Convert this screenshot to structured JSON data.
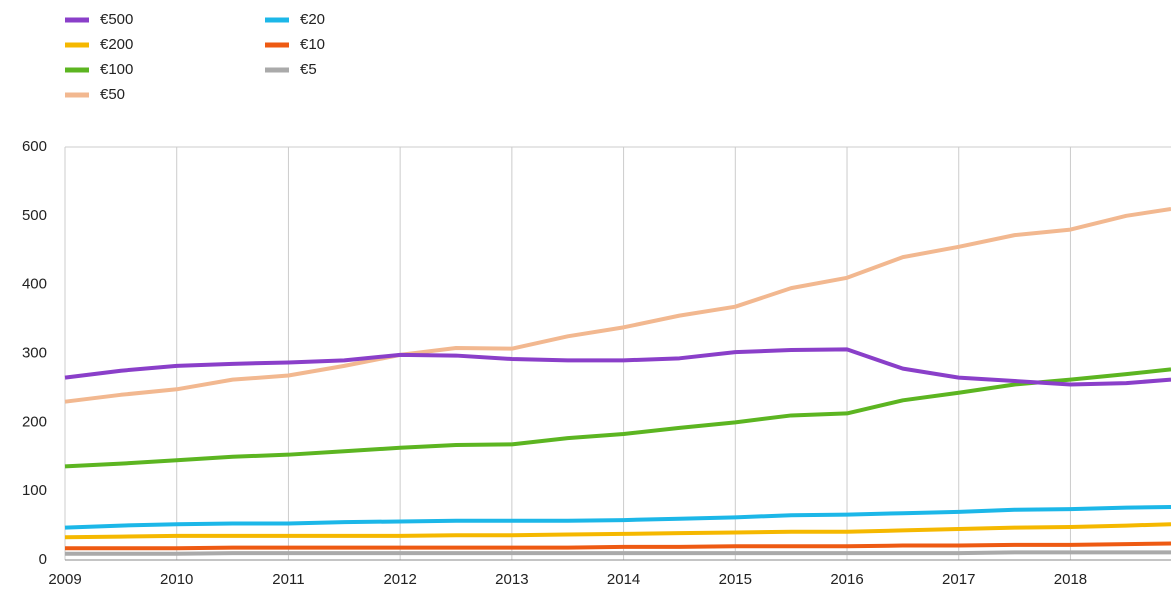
{
  "chart_data": {
    "type": "line",
    "x": [
      2009,
      2009.5,
      2010,
      2010.5,
      2011,
      2011.5,
      2012,
      2012.5,
      2013,
      2013.5,
      2014,
      2014.5,
      2015,
      2015.5,
      2016,
      2016.5,
      2017,
      2017.5,
      2018,
      2018.5,
      2018.9
    ],
    "series": [
      {
        "name": "€500",
        "color": "#8a3fc9",
        "values": [
          265,
          275,
          282,
          285,
          287,
          290,
          298,
          297,
          292,
          290,
          290,
          293,
          302,
          305,
          306,
          278,
          265,
          260,
          255,
          257,
          262
        ]
      },
      {
        "name": "€200",
        "color": "#f5b800",
        "values": [
          33,
          34,
          35,
          35,
          35,
          35,
          35,
          36,
          36,
          37,
          38,
          39,
          40,
          41,
          41,
          43,
          45,
          47,
          48,
          50,
          52
        ]
      },
      {
        "name": "€100",
        "color": "#5cb521",
        "values": [
          136,
          140,
          145,
          150,
          153,
          158,
          163,
          167,
          168,
          177,
          183,
          192,
          200,
          210,
          213,
          232,
          243,
          255,
          262,
          270,
          277
        ]
      },
      {
        "name": "€50",
        "color": "#f2b890",
        "values": [
          230,
          240,
          248,
          262,
          268,
          282,
          298,
          308,
          307,
          325,
          338,
          355,
          368,
          395,
          410,
          440,
          455,
          472,
          480,
          500,
          510
        ]
      },
      {
        "name": "€20",
        "color": "#1cb7e8",
        "values": [
          47,
          50,
          52,
          53,
          53,
          55,
          56,
          57,
          57,
          57,
          58,
          60,
          62,
          65,
          66,
          68,
          70,
          73,
          74,
          76,
          77
        ]
      },
      {
        "name": "€10",
        "color": "#ee5a12",
        "values": [
          17,
          17,
          17,
          18,
          18,
          18,
          18,
          18,
          18,
          18,
          19,
          19,
          20,
          20,
          20,
          21,
          21,
          22,
          22,
          23,
          24
        ]
      },
      {
        "name": "€5",
        "color": "#aaaaaa",
        "values": [
          9,
          9,
          9,
          10,
          10,
          10,
          10,
          10,
          10,
          10,
          10,
          10,
          10,
          10,
          10,
          10,
          10,
          11,
          11,
          11,
          11
        ]
      }
    ],
    "xlim": [
      2009,
      2018.9
    ],
    "xticks": [
      2009,
      2010,
      2011,
      2012,
      2013,
      2014,
      2015,
      2016,
      2017,
      2018
    ],
    "ylim": [
      0,
      600
    ],
    "yticks": [
      0,
      100,
      200,
      300,
      400,
      500,
      600
    ],
    "grid": "x"
  }
}
